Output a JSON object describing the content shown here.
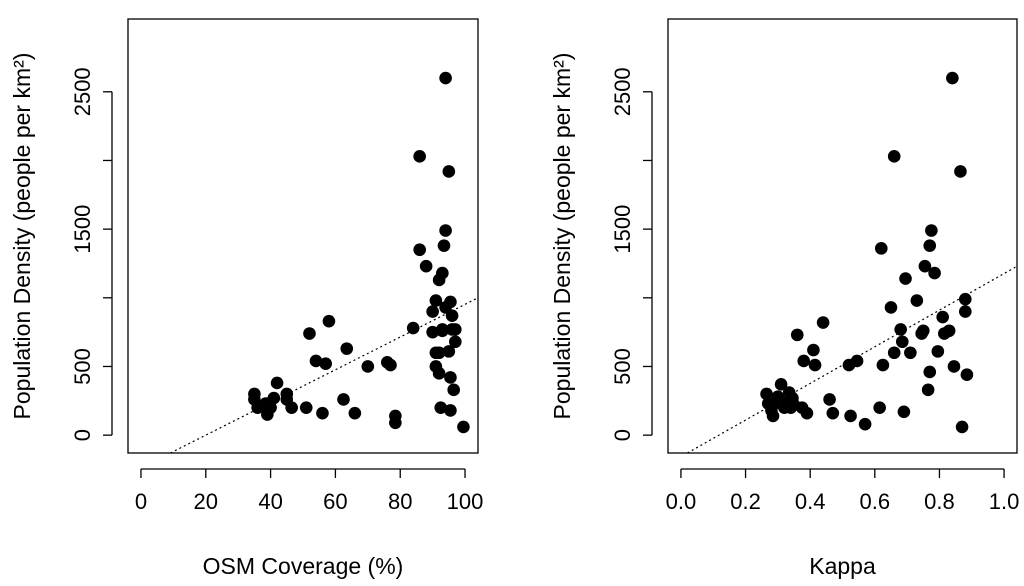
{
  "chart_data": [
    {
      "type": "scatter",
      "title": "",
      "xlabel": "OSM Coverage (%)",
      "ylabel": "Population Density (people per km²)",
      "xlim": [
        -4,
        104
      ],
      "ylim": [
        -130,
        3030
      ],
      "x_ticks": [
        0,
        20,
        40,
        60,
        80,
        100
      ],
      "x_tick_labels": [
        "0",
        "20",
        "40",
        "60",
        "80",
        "100"
      ],
      "y_ticks": [
        0,
        500,
        1500,
        2500
      ],
      "y_tick_labels": [
        "0",
        "500",
        "1500",
        "2500"
      ],
      "y_ticks_unlabeled": [
        1000,
        2000
      ],
      "trendline": {
        "style": "dotted",
        "points": [
          [
            9.1,
            -130
          ],
          [
            104,
            1000
          ]
        ]
      },
      "points": [
        [
          35,
          300
        ],
        [
          35,
          260
        ],
        [
          36,
          200
        ],
        [
          38.5,
          230
        ],
        [
          39,
          150
        ],
        [
          40,
          200
        ],
        [
          41,
          270
        ],
        [
          42,
          380
        ],
        [
          45,
          300
        ],
        [
          45,
          260
        ],
        [
          46.5,
          200
        ],
        [
          51,
          200
        ],
        [
          52,
          740
        ],
        [
          54,
          540
        ],
        [
          56,
          160
        ],
        [
          57,
          520
        ],
        [
          58,
          830
        ],
        [
          62.5,
          260
        ],
        [
          63.5,
          630
        ],
        [
          66,
          160
        ],
        [
          70,
          500
        ],
        [
          76,
          530
        ],
        [
          77,
          510
        ],
        [
          78.5,
          140
        ],
        [
          78.5,
          90
        ],
        [
          84,
          780
        ],
        [
          86,
          2030
        ],
        [
          86,
          1350
        ],
        [
          88,
          1230
        ],
        [
          90,
          900
        ],
        [
          90,
          750
        ],
        [
          91,
          980
        ],
        [
          91,
          500
        ],
        [
          91,
          600
        ],
        [
          92,
          1130
        ],
        [
          92,
          450
        ],
        [
          92,
          600
        ],
        [
          92.5,
          200
        ],
        [
          93,
          1180
        ],
        [
          93,
          760
        ],
        [
          93,
          770
        ],
        [
          93.5,
          1380
        ],
        [
          94,
          2600
        ],
        [
          94,
          1490
        ],
        [
          94,
          930
        ],
        [
          95,
          1920
        ],
        [
          95,
          610
        ],
        [
          95.5,
          970
        ],
        [
          95.5,
          420
        ],
        [
          95.5,
          180
        ],
        [
          96,
          870
        ],
        [
          96,
          770
        ],
        [
          96.5,
          330
        ],
        [
          97,
          770
        ],
        [
          97,
          680
        ],
        [
          99.5,
          60
        ]
      ]
    },
    {
      "type": "scatter",
      "title": "",
      "xlabel": "Kappa",
      "ylabel": "Population Density (people per km²)",
      "xlim": [
        -0.04,
        1.04
      ],
      "ylim": [
        -130,
        3030
      ],
      "x_ticks": [
        0.0,
        0.2,
        0.4,
        0.6,
        0.8,
        1.0
      ],
      "x_tick_labels": [
        "0.0",
        "0.2",
        "0.4",
        "0.6",
        "0.8",
        "1.0"
      ],
      "y_ticks": [
        0,
        500,
        1500,
        2500
      ],
      "y_tick_labels": [
        "0",
        "500",
        "1500",
        "2500"
      ],
      "y_ticks_unlabeled": [
        1000,
        2000
      ],
      "trendline": {
        "style": "dotted",
        "points": [
          [
            0.02,
            -130
          ],
          [
            1.04,
            1230
          ]
        ]
      },
      "points": [
        [
          0.265,
          300
        ],
        [
          0.27,
          230
        ],
        [
          0.28,
          180
        ],
        [
          0.285,
          140
        ],
        [
          0.29,
          230
        ],
        [
          0.3,
          280
        ],
        [
          0.31,
          370
        ],
        [
          0.32,
          200
        ],
        [
          0.33,
          240
        ],
        [
          0.335,
          310
        ],
        [
          0.34,
          200
        ],
        [
          0.345,
          270
        ],
        [
          0.35,
          220
        ],
        [
          0.36,
          730
        ],
        [
          0.375,
          200
        ],
        [
          0.38,
          540
        ],
        [
          0.39,
          160
        ],
        [
          0.41,
          620
        ],
        [
          0.415,
          510
        ],
        [
          0.44,
          820
        ],
        [
          0.46,
          260
        ],
        [
          0.47,
          160
        ],
        [
          0.52,
          510
        ],
        [
          0.525,
          140
        ],
        [
          0.545,
          540
        ],
        [
          0.57,
          80
        ],
        [
          0.615,
          200
        ],
        [
          0.62,
          1360
        ],
        [
          0.625,
          510
        ],
        [
          0.65,
          930
        ],
        [
          0.66,
          2030
        ],
        [
          0.66,
          600
        ],
        [
          0.68,
          770
        ],
        [
          0.685,
          680
        ],
        [
          0.69,
          170
        ],
        [
          0.695,
          1140
        ],
        [
          0.71,
          600
        ],
        [
          0.73,
          980
        ],
        [
          0.745,
          740
        ],
        [
          0.75,
          760
        ],
        [
          0.755,
          1230
        ],
        [
          0.765,
          330
        ],
        [
          0.77,
          460
        ],
        [
          0.77,
          1380
        ],
        [
          0.775,
          1490
        ],
        [
          0.785,
          1180
        ],
        [
          0.795,
          610
        ],
        [
          0.81,
          860
        ],
        [
          0.815,
          740
        ],
        [
          0.83,
          760
        ],
        [
          0.84,
          2600
        ],
        [
          0.845,
          500
        ],
        [
          0.865,
          1920
        ],
        [
          0.87,
          60
        ],
        [
          0.88,
          990
        ],
        [
          0.88,
          900
        ],
        [
          0.885,
          440
        ]
      ]
    }
  ]
}
